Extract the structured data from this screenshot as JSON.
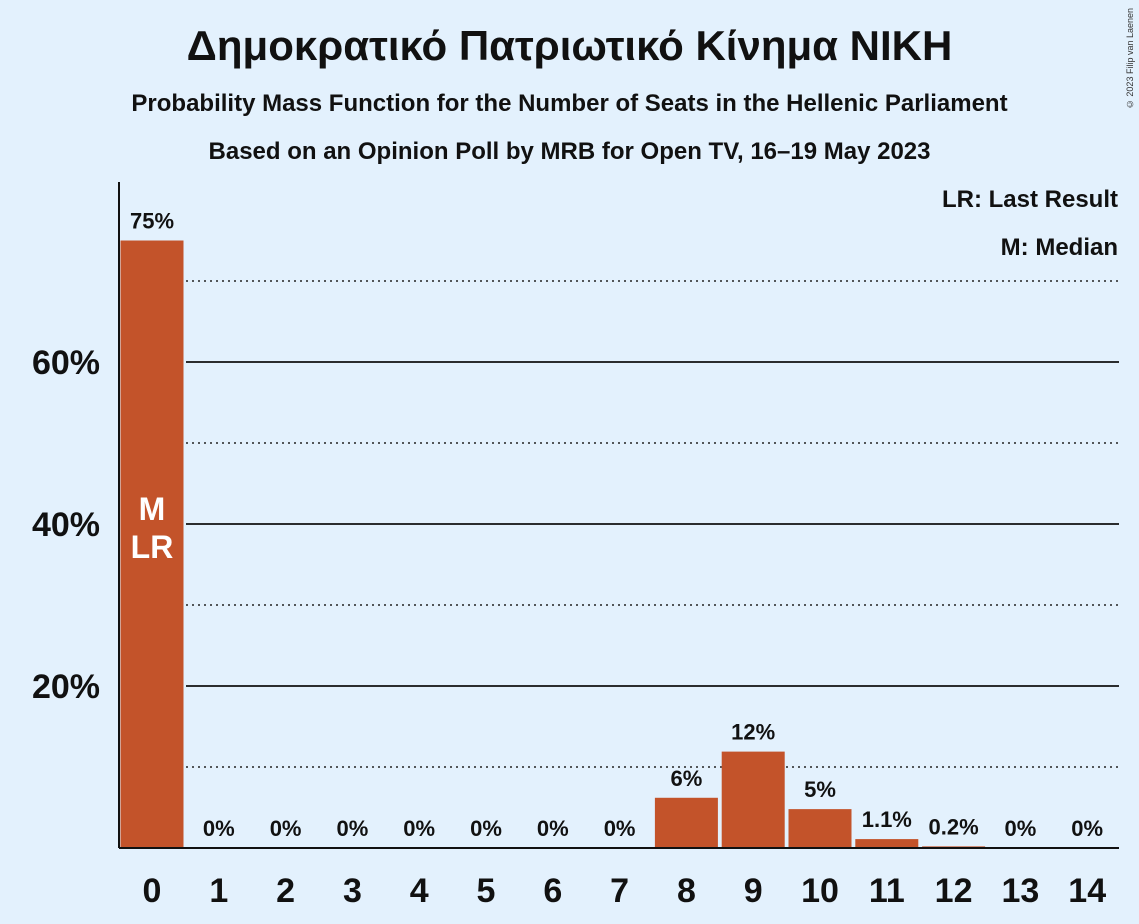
{
  "title": "Δημοκρατικό Πατριωτικό Κίνημα ΝΙΚΗ",
  "subtitle1": "Probability Mass Function for the Number of Seats in the Hellenic Parliament",
  "subtitle2": "Based on an Opinion Poll by MRB for Open TV, 16–19 May 2023",
  "copyright": "© 2023 Filip van Laenen",
  "legend": {
    "last_result": "LR: Last Result",
    "median": "M: Median"
  },
  "colors": {
    "bar": "#c3532a",
    "background": "#e3f1fd"
  },
  "chart_data": {
    "type": "bar",
    "categories": [
      "0",
      "1",
      "2",
      "3",
      "4",
      "5",
      "6",
      "7",
      "8",
      "9",
      "10",
      "11",
      "12",
      "13",
      "14"
    ],
    "values": [
      75,
      0,
      0,
      0,
      0,
      0,
      0,
      0,
      6.2,
      11.9,
      4.8,
      1.1,
      0.2,
      0,
      0
    ],
    "data_labels": [
      "75%",
      "0%",
      "0%",
      "0%",
      "0%",
      "0%",
      "0%",
      "0%",
      "6%",
      "12%",
      "5%",
      "1.1%",
      "0.2%",
      "0%",
      "0%"
    ],
    "y_ticks": [
      20,
      40,
      60
    ],
    "y_tick_labels": [
      "20%",
      "40%",
      "60%"
    ],
    "y_minor_gridlines": [
      10,
      30,
      50,
      70
    ],
    "ylim": [
      0,
      82
    ],
    "median_index": 0,
    "last_result_index": 0,
    "median_label": "M",
    "last_result_label": "LR",
    "legend_position": "top-right"
  }
}
